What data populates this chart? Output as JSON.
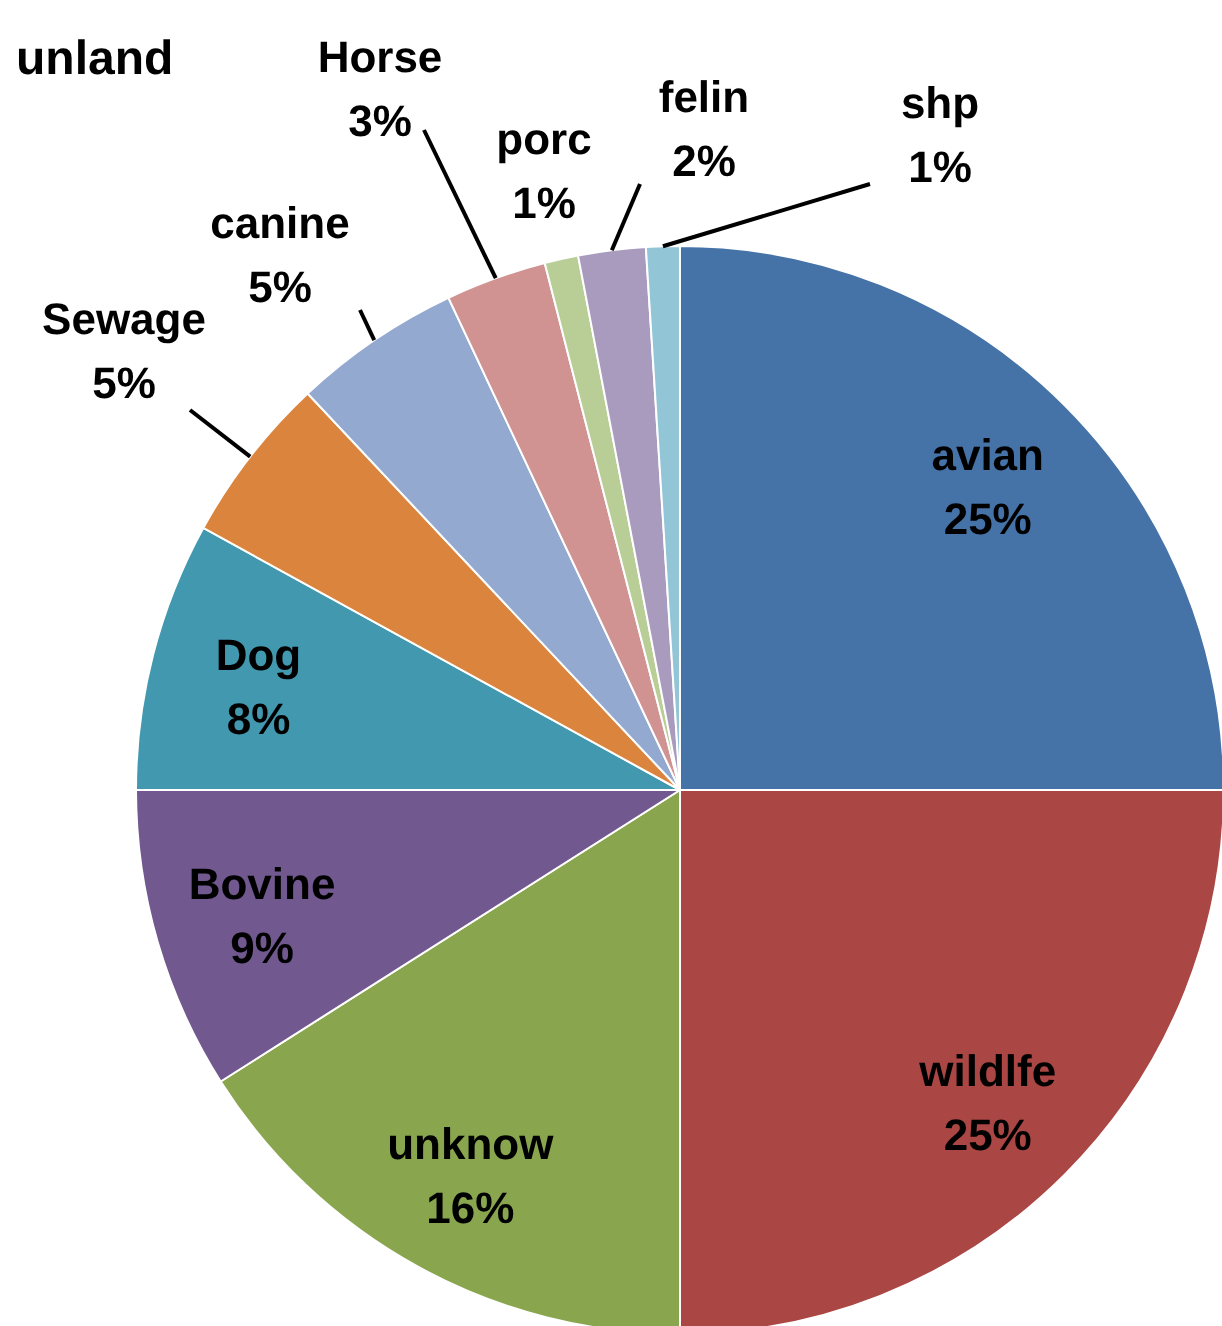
{
  "chart_data": {
    "type": "pie",
    "title": "unland",
    "categories": [
      "avian",
      "wildlfe",
      "unknow",
      "Bovine",
      "Dog",
      "Sewage",
      "canine",
      "Horse",
      "porc",
      "felin",
      "shp"
    ],
    "values": [
      25,
      25,
      16,
      9,
      8,
      5,
      5,
      3,
      1,
      2,
      1
    ],
    "value_labels": [
      "25%",
      "25%",
      "16%",
      "9%",
      "8%",
      "5%",
      "5%",
      "3%",
      "1%",
      "2%",
      "1%"
    ],
    "colors": [
      "#4572a7",
      "#aa4643",
      "#89a54e",
      "#71588f",
      "#4198af",
      "#db843d",
      "#93a9cf",
      "#d19392",
      "#b9cd96",
      "#a99bbd",
      "#92c5d6"
    ],
    "legend": false
  }
}
